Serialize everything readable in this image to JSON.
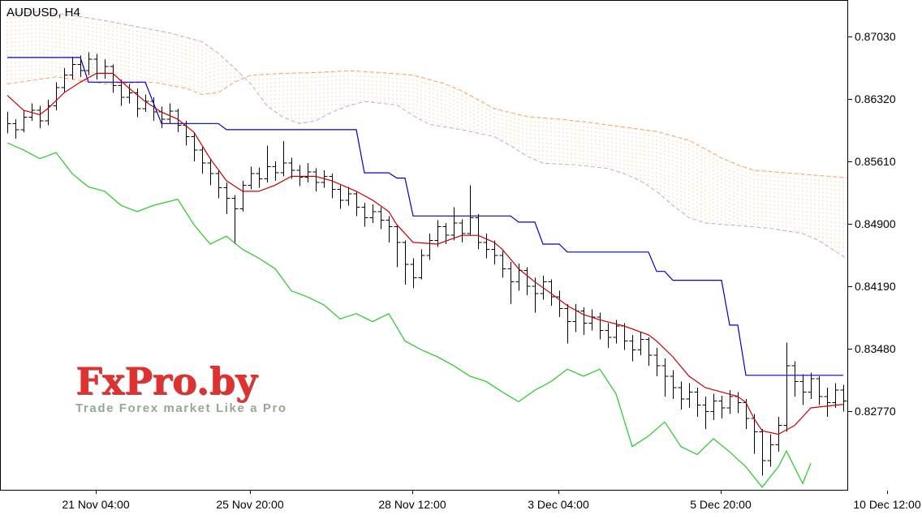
{
  "header": {
    "title": "AUDUSD, H4"
  },
  "watermark": {
    "brand": "FxPro.by",
    "tagline": "Trade Forex market Like a Pro"
  },
  "chart_data": {
    "type": "ohlc-bar",
    "title": "AUDUSD, H4",
    "symbol": "AUDUSD",
    "timeframe": "H4",
    "grid": "off",
    "legend": "none",
    "ylim": [
      0.8188,
      0.87444
    ],
    "y_ticks": [
      "0.87030",
      "0.86320",
      "0.85610",
      "0.84900",
      "0.84190",
      "0.83480",
      "0.82770"
    ],
    "x_ticks": [
      {
        "label": "21 Nov 04:00",
        "i": 11
      },
      {
        "label": "25 Nov 20:00",
        "i": 30
      },
      {
        "label": "28 Nov 12:00",
        "i": 50
      },
      {
        "label": "3 Dec 04:00",
        "i": 68
      },
      {
        "label": "5 Dec 20:00",
        "i": 88
      },
      {
        "label": "10 Dec 12:00",
        "i": 108.5
      }
    ],
    "bars": {
      "highs": [
        0.8618,
        0.861,
        0.862,
        0.8628,
        0.8625,
        0.8632,
        0.8652,
        0.8668,
        0.868,
        0.8682,
        0.8686,
        0.8684,
        0.8678,
        0.8672,
        0.8655,
        0.865,
        0.8645,
        0.8638,
        0.8635,
        0.8624,
        0.8628,
        0.8622,
        0.8608,
        0.8595,
        0.8578,
        0.8565,
        0.8552,
        0.8538,
        0.8524,
        0.854,
        0.8556,
        0.8555,
        0.858,
        0.8562,
        0.8585,
        0.8566,
        0.8558,
        0.856,
        0.8554,
        0.8552,
        0.8548,
        0.8535,
        0.8533,
        0.8528,
        0.8515,
        0.8513,
        0.851,
        0.85,
        0.849,
        0.8472,
        0.8452,
        0.8462,
        0.848,
        0.8495,
        0.8492,
        0.851,
        0.8496,
        0.8535,
        0.8502,
        0.848,
        0.8472,
        0.846,
        0.8448,
        0.8446,
        0.8442,
        0.843,
        0.8432,
        0.8428,
        0.8415,
        0.84,
        0.84,
        0.8396,
        0.8394,
        0.839,
        0.8378,
        0.8382,
        0.8378,
        0.8365,
        0.8368,
        0.8362,
        0.835,
        0.8338,
        0.8325,
        0.8312,
        0.831,
        0.8305,
        0.8295,
        0.8298,
        0.8296,
        0.8302,
        0.83,
        0.8292,
        0.8275,
        0.8258,
        0.8252,
        0.8272,
        0.8356,
        0.8335,
        0.832,
        0.8322,
        0.8318,
        0.8305,
        0.831,
        0.8308
      ],
      "lows": [
        0.8594,
        0.8588,
        0.8595,
        0.8608,
        0.86,
        0.8603,
        0.862,
        0.864,
        0.8655,
        0.8658,
        0.866,
        0.8655,
        0.8656,
        0.864,
        0.8625,
        0.8628,
        0.8612,
        0.8618,
        0.8608,
        0.86,
        0.8605,
        0.8595,
        0.858,
        0.8562,
        0.8548,
        0.8535,
        0.852,
        0.8502,
        0.8468,
        0.8505,
        0.853,
        0.8532,
        0.8538,
        0.854,
        0.8545,
        0.8542,
        0.8534,
        0.8538,
        0.8528,
        0.8532,
        0.852,
        0.8508,
        0.8512,
        0.85,
        0.8488,
        0.8492,
        0.8485,
        0.847,
        0.8442,
        0.8422,
        0.8418,
        0.8428,
        0.845,
        0.8465,
        0.8468,
        0.8472,
        0.847,
        0.8478,
        0.8462,
        0.8452,
        0.8445,
        0.843,
        0.84,
        0.8415,
        0.841,
        0.839,
        0.8405,
        0.8398,
        0.8385,
        0.8355,
        0.8368,
        0.8365,
        0.837,
        0.836,
        0.835,
        0.8355,
        0.8348,
        0.8335,
        0.8342,
        0.833,
        0.8318,
        0.8295,
        0.8292,
        0.828,
        0.8282,
        0.8272,
        0.8258,
        0.8268,
        0.827,
        0.8275,
        0.8276,
        0.8258,
        0.823,
        0.8205,
        0.8215,
        0.8232,
        0.8255,
        0.8295,
        0.8285,
        0.8292,
        0.8285,
        0.8272,
        0.8282,
        0.8278
      ],
      "closes": [
        0.8605,
        0.8598,
        0.8612,
        0.862,
        0.8608,
        0.8625,
        0.8646,
        0.866,
        0.8672,
        0.8665,
        0.8678,
        0.8662,
        0.867,
        0.8648,
        0.8635,
        0.864,
        0.8622,
        0.863,
        0.8618,
        0.861,
        0.8619,
        0.8603,
        0.859,
        0.8575,
        0.856,
        0.8548,
        0.8532,
        0.852,
        0.8508,
        0.8535,
        0.8548,
        0.8542,
        0.8556,
        0.8549,
        0.856,
        0.8552,
        0.8544,
        0.855,
        0.8538,
        0.8545,
        0.853,
        0.8518,
        0.8525,
        0.851,
        0.8498,
        0.8505,
        0.8495,
        0.8488,
        0.847,
        0.8445,
        0.843,
        0.8455,
        0.8472,
        0.8488,
        0.8478,
        0.8492,
        0.848,
        0.8498,
        0.847,
        0.8462,
        0.8455,
        0.844,
        0.8425,
        0.8438,
        0.842,
        0.8412,
        0.8425,
        0.8408,
        0.8395,
        0.838,
        0.8392,
        0.8378,
        0.8385,
        0.837,
        0.8362,
        0.8375,
        0.8358,
        0.8348,
        0.836,
        0.8342,
        0.833,
        0.8318,
        0.8305,
        0.8292,
        0.83,
        0.8285,
        0.8278,
        0.829,
        0.8282,
        0.8295,
        0.8288,
        0.827,
        0.8255,
        0.8222,
        0.824,
        0.8262,
        0.833,
        0.8312,
        0.83,
        0.8315,
        0.8295,
        0.8288,
        0.8302,
        0.829
      ]
    },
    "indicators": {
      "name": "Ichimoku Kinko Hyo",
      "tenkan_sen": {
        "color": "#cc0000",
        "points": [
          [
            0,
            0.8637
          ],
          [
            2,
            0.862
          ],
          [
            4,
            0.8615
          ],
          [
            5,
            0.8622
          ],
          [
            7,
            0.864
          ],
          [
            9,
            0.8652
          ],
          [
            11,
            0.8662
          ],
          [
            13,
            0.8662
          ],
          [
            15,
            0.8645
          ],
          [
            17,
            0.863
          ],
          [
            19,
            0.8618
          ],
          [
            21,
            0.861
          ],
          [
            23,
            0.8595
          ],
          [
            25,
            0.8565
          ],
          [
            27,
            0.854
          ],
          [
            29,
            0.8528
          ],
          [
            31,
            0.8528
          ],
          [
            33,
            0.8535
          ],
          [
            35,
            0.8545
          ],
          [
            38,
            0.8545
          ],
          [
            40,
            0.854
          ],
          [
            43,
            0.8528
          ],
          [
            45,
            0.8518
          ],
          [
            47,
            0.8505
          ],
          [
            48,
            0.849
          ],
          [
            50,
            0.847
          ],
          [
            53,
            0.8468
          ],
          [
            56,
            0.8478
          ],
          [
            58,
            0.8478
          ],
          [
            60,
            0.847
          ],
          [
            61,
            0.8462
          ],
          [
            63,
            0.844
          ],
          [
            65,
            0.8425
          ],
          [
            67,
            0.8412
          ],
          [
            69,
            0.8398
          ],
          [
            71,
            0.8388
          ],
          [
            73,
            0.8382
          ],
          [
            76,
            0.8375
          ],
          [
            79,
            0.8365
          ],
          [
            80,
            0.8358
          ],
          [
            82,
            0.834
          ],
          [
            84,
            0.8318
          ],
          [
            86,
            0.8305
          ],
          [
            88,
            0.83
          ],
          [
            90,
            0.8295
          ],
          [
            91,
            0.8288
          ],
          [
            92,
            0.827
          ],
          [
            93,
            0.8256
          ],
          [
            95,
            0.8252
          ],
          [
            97,
            0.8262
          ],
          [
            99,
            0.8282
          ],
          [
            103,
            0.8286
          ]
        ]
      },
      "kijun_sen": {
        "color": "#0000cc",
        "points": [
          [
            0,
            0.868
          ],
          [
            9,
            0.868
          ],
          [
            10,
            0.8652
          ],
          [
            17,
            0.8652
          ],
          [
            19,
            0.8605
          ],
          [
            26,
            0.8605
          ],
          [
            27,
            0.8598
          ],
          [
            43,
            0.8598
          ],
          [
            44,
            0.8549
          ],
          [
            47,
            0.8549
          ],
          [
            48,
            0.8543
          ],
          [
            49,
            0.8543
          ],
          [
            50,
            0.85
          ],
          [
            62,
            0.85
          ],
          [
            63,
            0.8493
          ],
          [
            65,
            0.8493
          ],
          [
            66,
            0.8468
          ],
          [
            68,
            0.8468
          ],
          [
            69,
            0.8459
          ],
          [
            79,
            0.8459
          ],
          [
            80,
            0.8437
          ],
          [
            81,
            0.8437
          ],
          [
            82,
            0.8427
          ],
          [
            88,
            0.8427
          ],
          [
            89,
            0.8376
          ],
          [
            90,
            0.8376
          ],
          [
            91,
            0.8319
          ],
          [
            103,
            0.8319
          ]
        ]
      },
      "chikou_span": {
        "color": "#33cc33",
        "points": [
          [
            0,
            0.8583
          ],
          [
            2,
            0.8575
          ],
          [
            4,
            0.8565
          ],
          [
            6,
            0.8572
          ],
          [
            8,
            0.8548
          ],
          [
            10,
            0.8533
          ],
          [
            12,
            0.8528
          ],
          [
            14,
            0.8512
          ],
          [
            16,
            0.8505
          ],
          [
            18,
            0.8512
          ],
          [
            21,
            0.8519
          ],
          [
            23,
            0.849
          ],
          [
            25,
            0.8468
          ],
          [
            27,
            0.8477
          ],
          [
            29,
            0.8462
          ],
          [
            31,
            0.8452
          ],
          [
            33,
            0.844
          ],
          [
            35,
            0.8415
          ],
          [
            37,
            0.8408
          ],
          [
            39,
            0.8399
          ],
          [
            41,
            0.8383
          ],
          [
            43,
            0.8389
          ],
          [
            45,
            0.838
          ],
          [
            47,
            0.8389
          ],
          [
            49,
            0.8358
          ],
          [
            51,
            0.8348
          ],
          [
            53,
            0.834
          ],
          [
            55,
            0.833
          ],
          [
            57,
            0.8318
          ],
          [
            59,
            0.8312
          ],
          [
            61,
            0.83
          ],
          [
            63,
            0.8289
          ],
          [
            65,
            0.8302
          ],
          [
            67,
            0.8312
          ],
          [
            69,
            0.8326
          ],
          [
            71,
            0.8318
          ],
          [
            73,
            0.8326
          ],
          [
            75,
            0.8298
          ],
          [
            77,
            0.8238
          ],
          [
            79,
            0.825
          ],
          [
            81,
            0.8266
          ],
          [
            83,
            0.8238
          ],
          [
            85,
            0.8229
          ],
          [
            87,
            0.8247
          ],
          [
            89,
            0.8232
          ],
          [
            91,
            0.8215
          ],
          [
            93,
            0.8192
          ],
          [
            95,
            0.8215
          ],
          [
            96,
            0.8233
          ],
          [
            98,
            0.8196
          ],
          [
            99,
            0.8219
          ]
        ]
      },
      "senkou_span_a": {
        "color": "#f4a460",
        "style": "dashed",
        "points": [
          [
            0,
            0.865
          ],
          [
            6,
            0.8658
          ],
          [
            12,
            0.865
          ],
          [
            18,
            0.8652
          ],
          [
            22,
            0.8645
          ],
          [
            24,
            0.8638
          ],
          [
            26,
            0.864
          ],
          [
            28,
            0.8652
          ],
          [
            30,
            0.866
          ],
          [
            34,
            0.8662
          ],
          [
            38,
            0.8663
          ],
          [
            42,
            0.8665
          ],
          [
            46,
            0.8663
          ],
          [
            50,
            0.866
          ],
          [
            54,
            0.865
          ],
          [
            56,
            0.8642
          ],
          [
            58,
            0.8632
          ],
          [
            60,
            0.8622
          ],
          [
            64,
            0.8613
          ],
          [
            68,
            0.861
          ],
          [
            72,
            0.8606
          ],
          [
            76,
            0.8601
          ],
          [
            80,
            0.8596
          ],
          [
            84,
            0.8586
          ],
          [
            86,
            0.8576
          ],
          [
            88,
            0.8566
          ],
          [
            90,
            0.8558
          ],
          [
            92,
            0.8552
          ],
          [
            96,
            0.8549
          ],
          [
            100,
            0.8546
          ],
          [
            104,
            0.8543
          ],
          [
            108,
            0.854
          ],
          [
            110,
            0.8538
          ]
        ]
      },
      "senkou_span_b": {
        "color": "#cfa3cf",
        "style": "dashed",
        "points": [
          [
            0,
            0.873
          ],
          [
            4,
            0.8732
          ],
          [
            8,
            0.8728
          ],
          [
            12,
            0.8722
          ],
          [
            16,
            0.8715
          ],
          [
            20,
            0.8708
          ],
          [
            24,
            0.8698
          ],
          [
            26,
            0.8685
          ],
          [
            28,
            0.8668
          ],
          [
            30,
            0.865
          ],
          [
            32,
            0.8625
          ],
          [
            34,
            0.8612
          ],
          [
            36,
            0.8605
          ],
          [
            38,
            0.8608
          ],
          [
            40,
            0.8618
          ],
          [
            42,
            0.8625
          ],
          [
            44,
            0.863
          ],
          [
            48,
            0.8626
          ],
          [
            50,
            0.8614
          ],
          [
            52,
            0.8604
          ],
          [
            56,
            0.8598
          ],
          [
            60,
            0.859
          ],
          [
            62,
            0.858
          ],
          [
            64,
            0.8568
          ],
          [
            66,
            0.856
          ],
          [
            70,
            0.8558
          ],
          [
            74,
            0.8554
          ],
          [
            76,
            0.8548
          ],
          [
            78,
            0.854
          ],
          [
            80,
            0.8528
          ],
          [
            82,
            0.8512
          ],
          [
            84,
            0.8498
          ],
          [
            86,
            0.8492
          ],
          [
            90,
            0.8489
          ],
          [
            94,
            0.8486
          ],
          [
            98,
            0.848
          ],
          [
            100,
            0.8472
          ],
          [
            104,
            0.8448
          ],
          [
            108,
            0.8424
          ],
          [
            110,
            0.841
          ]
        ]
      }
    },
    "colors": {
      "bars": "#000000",
      "background": "#ffffff",
      "axis_text": "#000000",
      "cloud_hatch": "#f4a460",
      "watermark_brand": "#e03131",
      "watermark_tagline": "#94a894"
    }
  }
}
